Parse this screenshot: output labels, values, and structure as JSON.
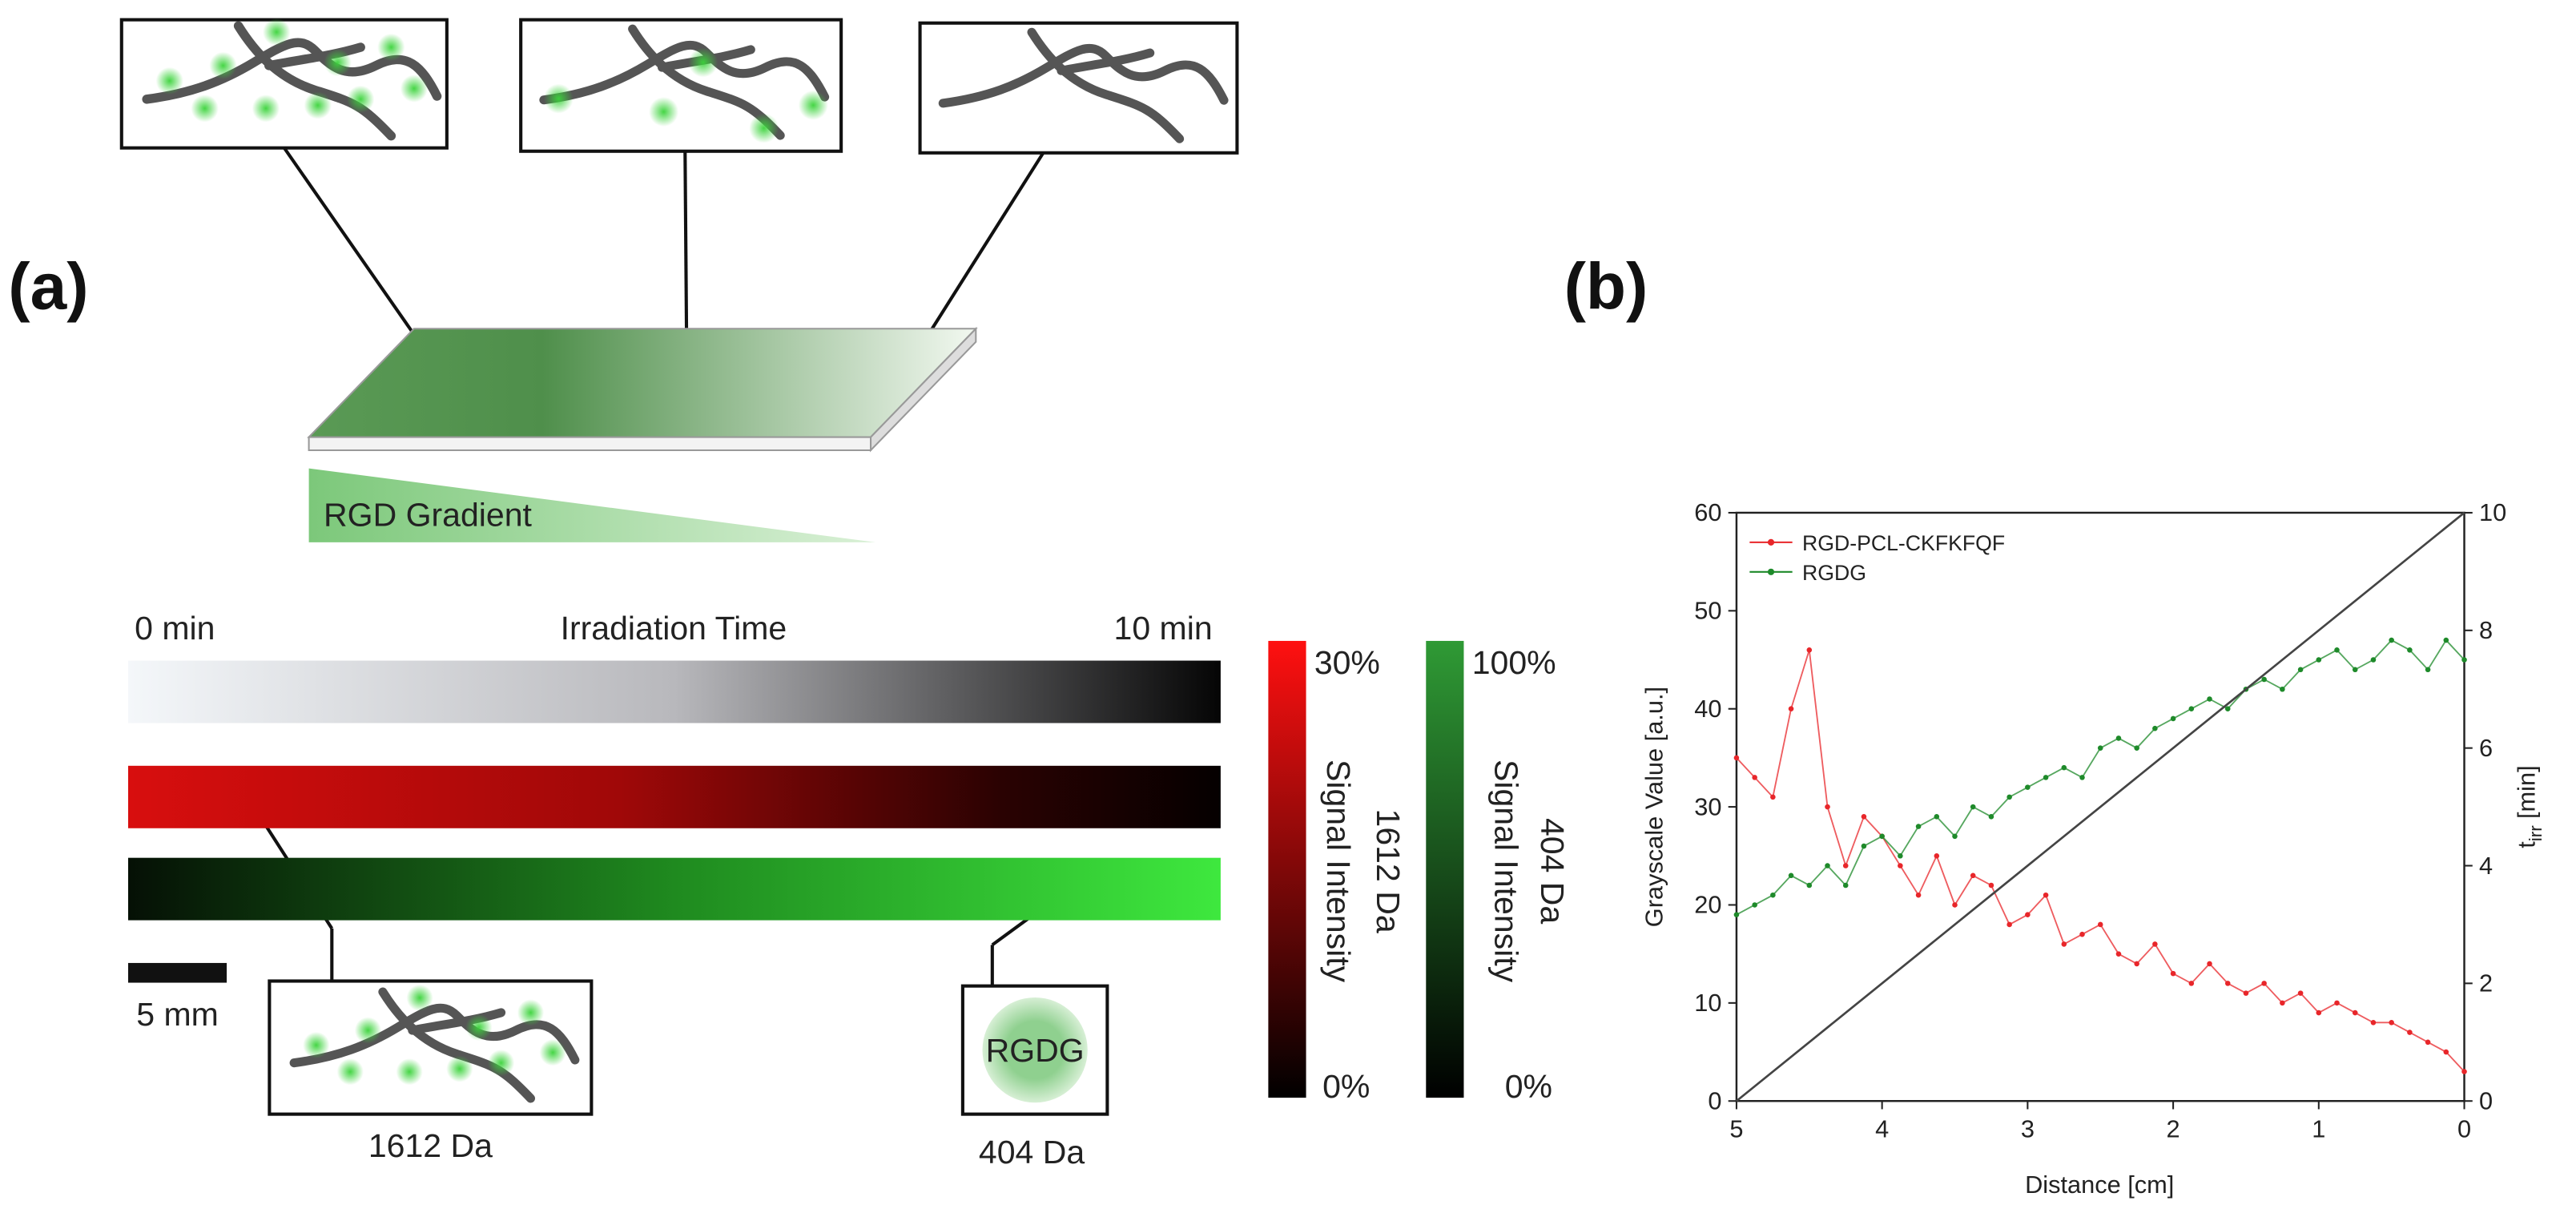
{
  "panel_a": {
    "label": "(a)",
    "gradient_label": "RGD Gradient",
    "time_start": "0 min",
    "time_title": "Irradiation Time",
    "time_end": "10 min",
    "scale_bar": "5 mm",
    "box_1612": "1612 Da",
    "box_404_text": "RGDG",
    "box_404": "404 Da",
    "red_colorbar": {
      "max": "30%",
      "min": "0%",
      "title": "1612 Da",
      "subtitle": "Signal Intensity"
    },
    "green_colorbar": {
      "max": "100%",
      "min": "0%",
      "title": "404 Da",
      "subtitle": "Signal Intensity"
    }
  },
  "panel_b": {
    "label": "(b)"
  },
  "chart_data": {
    "type": "line",
    "xlabel": "Distance [cm]",
    "ylabel": "Grayscale Value [a.u.]",
    "y2label": [
      "t",
      "irr",
      "[min]"
    ],
    "xlim": [
      5,
      0
    ],
    "xticks": [
      5,
      4,
      3,
      2,
      1,
      0
    ],
    "ylim": [
      0,
      60
    ],
    "yticks": [
      0,
      10,
      20,
      30,
      40,
      50,
      60
    ],
    "y2lim": [
      0,
      10
    ],
    "y2ticks": [
      0,
      2,
      4,
      6,
      8,
      10
    ],
    "grid": false,
    "legend": "upper left",
    "series": [
      {
        "name": "RGD-PCL-CKFKFQF",
        "color": "#e8262a",
        "x": [
          5,
          4.875,
          4.75,
          4.625,
          4.5,
          4.375,
          4.25,
          4.125,
          4,
          3.875,
          3.75,
          3.625,
          3.5,
          3.375,
          3.25,
          3.125,
          3,
          2.875,
          2.75,
          2.625,
          2.5,
          2.375,
          2.25,
          2.125,
          2,
          1.875,
          1.75,
          1.625,
          1.5,
          1.375,
          1.25,
          1.125,
          1,
          0.875,
          0.75,
          0.625,
          0.5,
          0.375,
          0.25,
          0.125,
          0
        ],
        "values": [
          35,
          33,
          31,
          40,
          46,
          30,
          24,
          29,
          27,
          24,
          21,
          25,
          20,
          23,
          22,
          18,
          19,
          21,
          16,
          17,
          18,
          15,
          14,
          16,
          13,
          12,
          14,
          12,
          11,
          12,
          10,
          11,
          9,
          10,
          9,
          8,
          8,
          7,
          6,
          5,
          3
        ]
      },
      {
        "name": "RGDG",
        "color": "#1e8a2a",
        "x": [
          5,
          4.875,
          4.75,
          4.625,
          4.5,
          4.375,
          4.25,
          4.125,
          4,
          3.875,
          3.75,
          3.625,
          3.5,
          3.375,
          3.25,
          3.125,
          3,
          2.875,
          2.75,
          2.625,
          2.5,
          2.375,
          2.25,
          2.125,
          2,
          1.875,
          1.75,
          1.625,
          1.5,
          1.375,
          1.25,
          1.125,
          1,
          0.875,
          0.75,
          0.625,
          0.5,
          0.375,
          0.25,
          0.125,
          0
        ],
        "values": [
          19,
          20,
          21,
          23,
          22,
          24,
          22,
          26,
          27,
          25,
          28,
          29,
          27,
          30,
          29,
          31,
          32,
          33,
          34,
          33,
          36,
          37,
          36,
          38,
          39,
          40,
          41,
          40,
          42,
          43,
          42,
          44,
          45,
          46,
          44,
          45,
          47,
          46,
          44,
          47,
          45
        ]
      },
      {
        "color": "#444444",
        "axis": "y2",
        "x": [
          5,
          0
        ],
        "values": [
          0,
          10
        ]
      }
    ]
  }
}
